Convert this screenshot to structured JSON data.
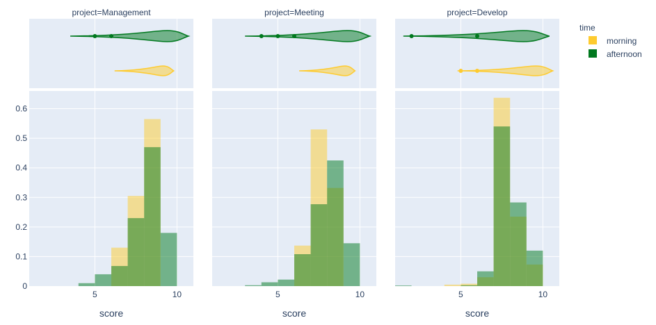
{
  "chart_data": {
    "type": "histogram-with-violin-marginals",
    "legend": {
      "title": "time",
      "placement": "top-right",
      "items": [
        {
          "name": "morning",
          "color": "#FECB2F"
        },
        {
          "name": "afternoon",
          "color": "#00781E"
        }
      ]
    },
    "xlabel": "score",
    "xlim": [
      1,
      11
    ],
    "xticks": [
      5,
      10
    ],
    "ylim": [
      0,
      0.66
    ],
    "yticks": [
      0,
      0.1,
      0.2,
      0.3,
      0.4,
      0.5,
      0.6
    ],
    "ytick_labels": [
      "0",
      "0.1",
      "0.2",
      "0.3",
      "0.4",
      "0.5",
      "0.6"
    ],
    "bin_width": 1,
    "facets": [
      {
        "title": "project=Management",
        "series": [
          {
            "name": "morning",
            "bins": [
              {
                "start": 6,
                "end": 7,
                "y": 0.13
              },
              {
                "start": 7,
                "end": 8,
                "y": 0.305
              },
              {
                "start": 8,
                "end": 9,
                "y": 0.565
              }
            ]
          },
          {
            "name": "afternoon",
            "bins": [
              {
                "start": 4,
                "end": 5,
                "y": 0.01
              },
              {
                "start": 5,
                "end": 6,
                "y": 0.04
              },
              {
                "start": 6,
                "end": 7,
                "y": 0.068
              },
              {
                "start": 7,
                "end": 8,
                "y": 0.23
              },
              {
                "start": 8,
                "end": 9,
                "y": 0.47
              },
              {
                "start": 9,
                "end": 10,
                "y": 0.18
              }
            ]
          }
        ],
        "violins": [
          {
            "name": "afternoon",
            "range": [
              3.5,
              10.7
            ],
            "outliers": [
              5,
              6
            ]
          },
          {
            "name": "morning",
            "range": [
              6.2,
              9.8
            ],
            "outliers": []
          }
        ]
      },
      {
        "title": "project=Meeting",
        "series": [
          {
            "name": "morning",
            "bins": [
              {
                "start": 6,
                "end": 7,
                "y": 0.137
              },
              {
                "start": 7,
                "end": 8,
                "y": 0.53
              },
              {
                "start": 8,
                "end": 9,
                "y": 0.332
              }
            ]
          },
          {
            "name": "afternoon",
            "bins": [
              {
                "start": 3,
                "end": 4,
                "y": 0.003
              },
              {
                "start": 4,
                "end": 5,
                "y": 0.013
              },
              {
                "start": 5,
                "end": 6,
                "y": 0.022
              },
              {
                "start": 6,
                "end": 7,
                "y": 0.108
              },
              {
                "start": 7,
                "end": 8,
                "y": 0.277
              },
              {
                "start": 8,
                "end": 9,
                "y": 0.425
              },
              {
                "start": 9,
                "end": 10,
                "y": 0.145
              }
            ]
          }
        ],
        "violins": [
          {
            "name": "afternoon",
            "range": [
              3,
              10.6
            ],
            "outliers": [
              4,
              5,
              6
            ]
          },
          {
            "name": "morning",
            "range": [
              6.3,
              9.7
            ],
            "outliers": []
          }
        ]
      },
      {
        "title": "project=Develop",
        "series": [
          {
            "name": "morning",
            "bins": [
              {
                "start": 4,
                "end": 5,
                "y": 0.005
              },
              {
                "start": 5,
                "end": 6,
                "y": 0.008
              },
              {
                "start": 6,
                "end": 7,
                "y": 0.03
              },
              {
                "start": 7,
                "end": 8,
                "y": 0.637
              },
              {
                "start": 8,
                "end": 9,
                "y": 0.235
              },
              {
                "start": 9,
                "end": 10,
                "y": 0.073
              }
            ]
          },
          {
            "name": "afternoon",
            "bins": [
              {
                "start": 1,
                "end": 2,
                "y": 0.002
              },
              {
                "start": 5,
                "end": 6,
                "y": 0.003
              },
              {
                "start": 6,
                "end": 7,
                "y": 0.05
              },
              {
                "start": 7,
                "end": 8,
                "y": 0.54
              },
              {
                "start": 8,
                "end": 9,
                "y": 0.283
              },
              {
                "start": 9,
                "end": 10,
                "y": 0.12
              }
            ]
          }
        ],
        "violins": [
          {
            "name": "afternoon",
            "range": [
              1.5,
              10.4
            ],
            "outliers": [
              2,
              6
            ]
          },
          {
            "name": "morning",
            "range": [
              4.8,
              10.6
            ],
            "outliers": [
              5,
              6
            ]
          }
        ]
      }
    ]
  }
}
